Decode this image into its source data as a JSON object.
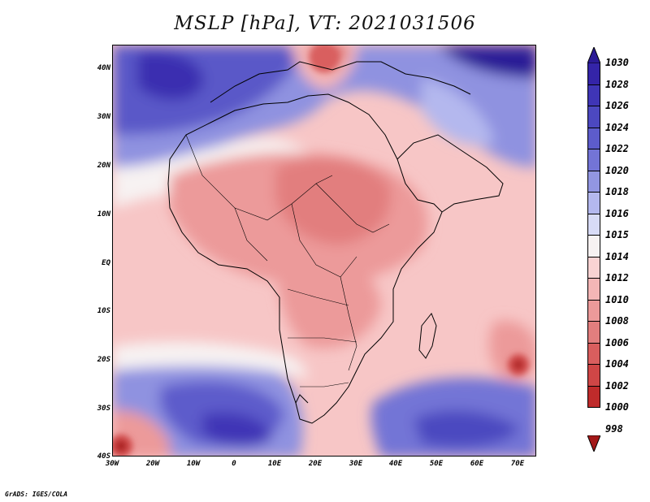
{
  "title": "MSLP [hPa], VT: 2021031506",
  "footer": "GrADS: IGES/COLA",
  "map": {
    "lat_labels": [
      "40N",
      "30N",
      "20N",
      "10N",
      "EQ",
      "10S",
      "20S",
      "30S",
      "40S"
    ],
    "lon_labels": [
      "30W",
      "20W",
      "10W",
      "0",
      "10E",
      "20E",
      "30E",
      "40E",
      "50E",
      "60E",
      "70E"
    ]
  },
  "colorbar": {
    "levels": [
      "1030",
      "1028",
      "1026",
      "1024",
      "1022",
      "1020",
      "1018",
      "1016",
      "1015",
      "1014",
      "1012",
      "1010",
      "1008",
      "1006",
      "1004",
      "1002",
      "1000",
      "998"
    ],
    "colors": [
      "#2b1a96",
      "#3424a8",
      "#3f35b6",
      "#4c48c0",
      "#5d5ccb",
      "#7374d6",
      "#9296e2",
      "#b4b8ee",
      "#d8dbf6",
      "#f7f2f2",
      "#f9d3d3",
      "#f4b6b6",
      "#ec9a9a",
      "#e27e7e",
      "#d95e5e",
      "#cf4646",
      "#bf2b2b",
      "#a31818"
    ]
  }
}
